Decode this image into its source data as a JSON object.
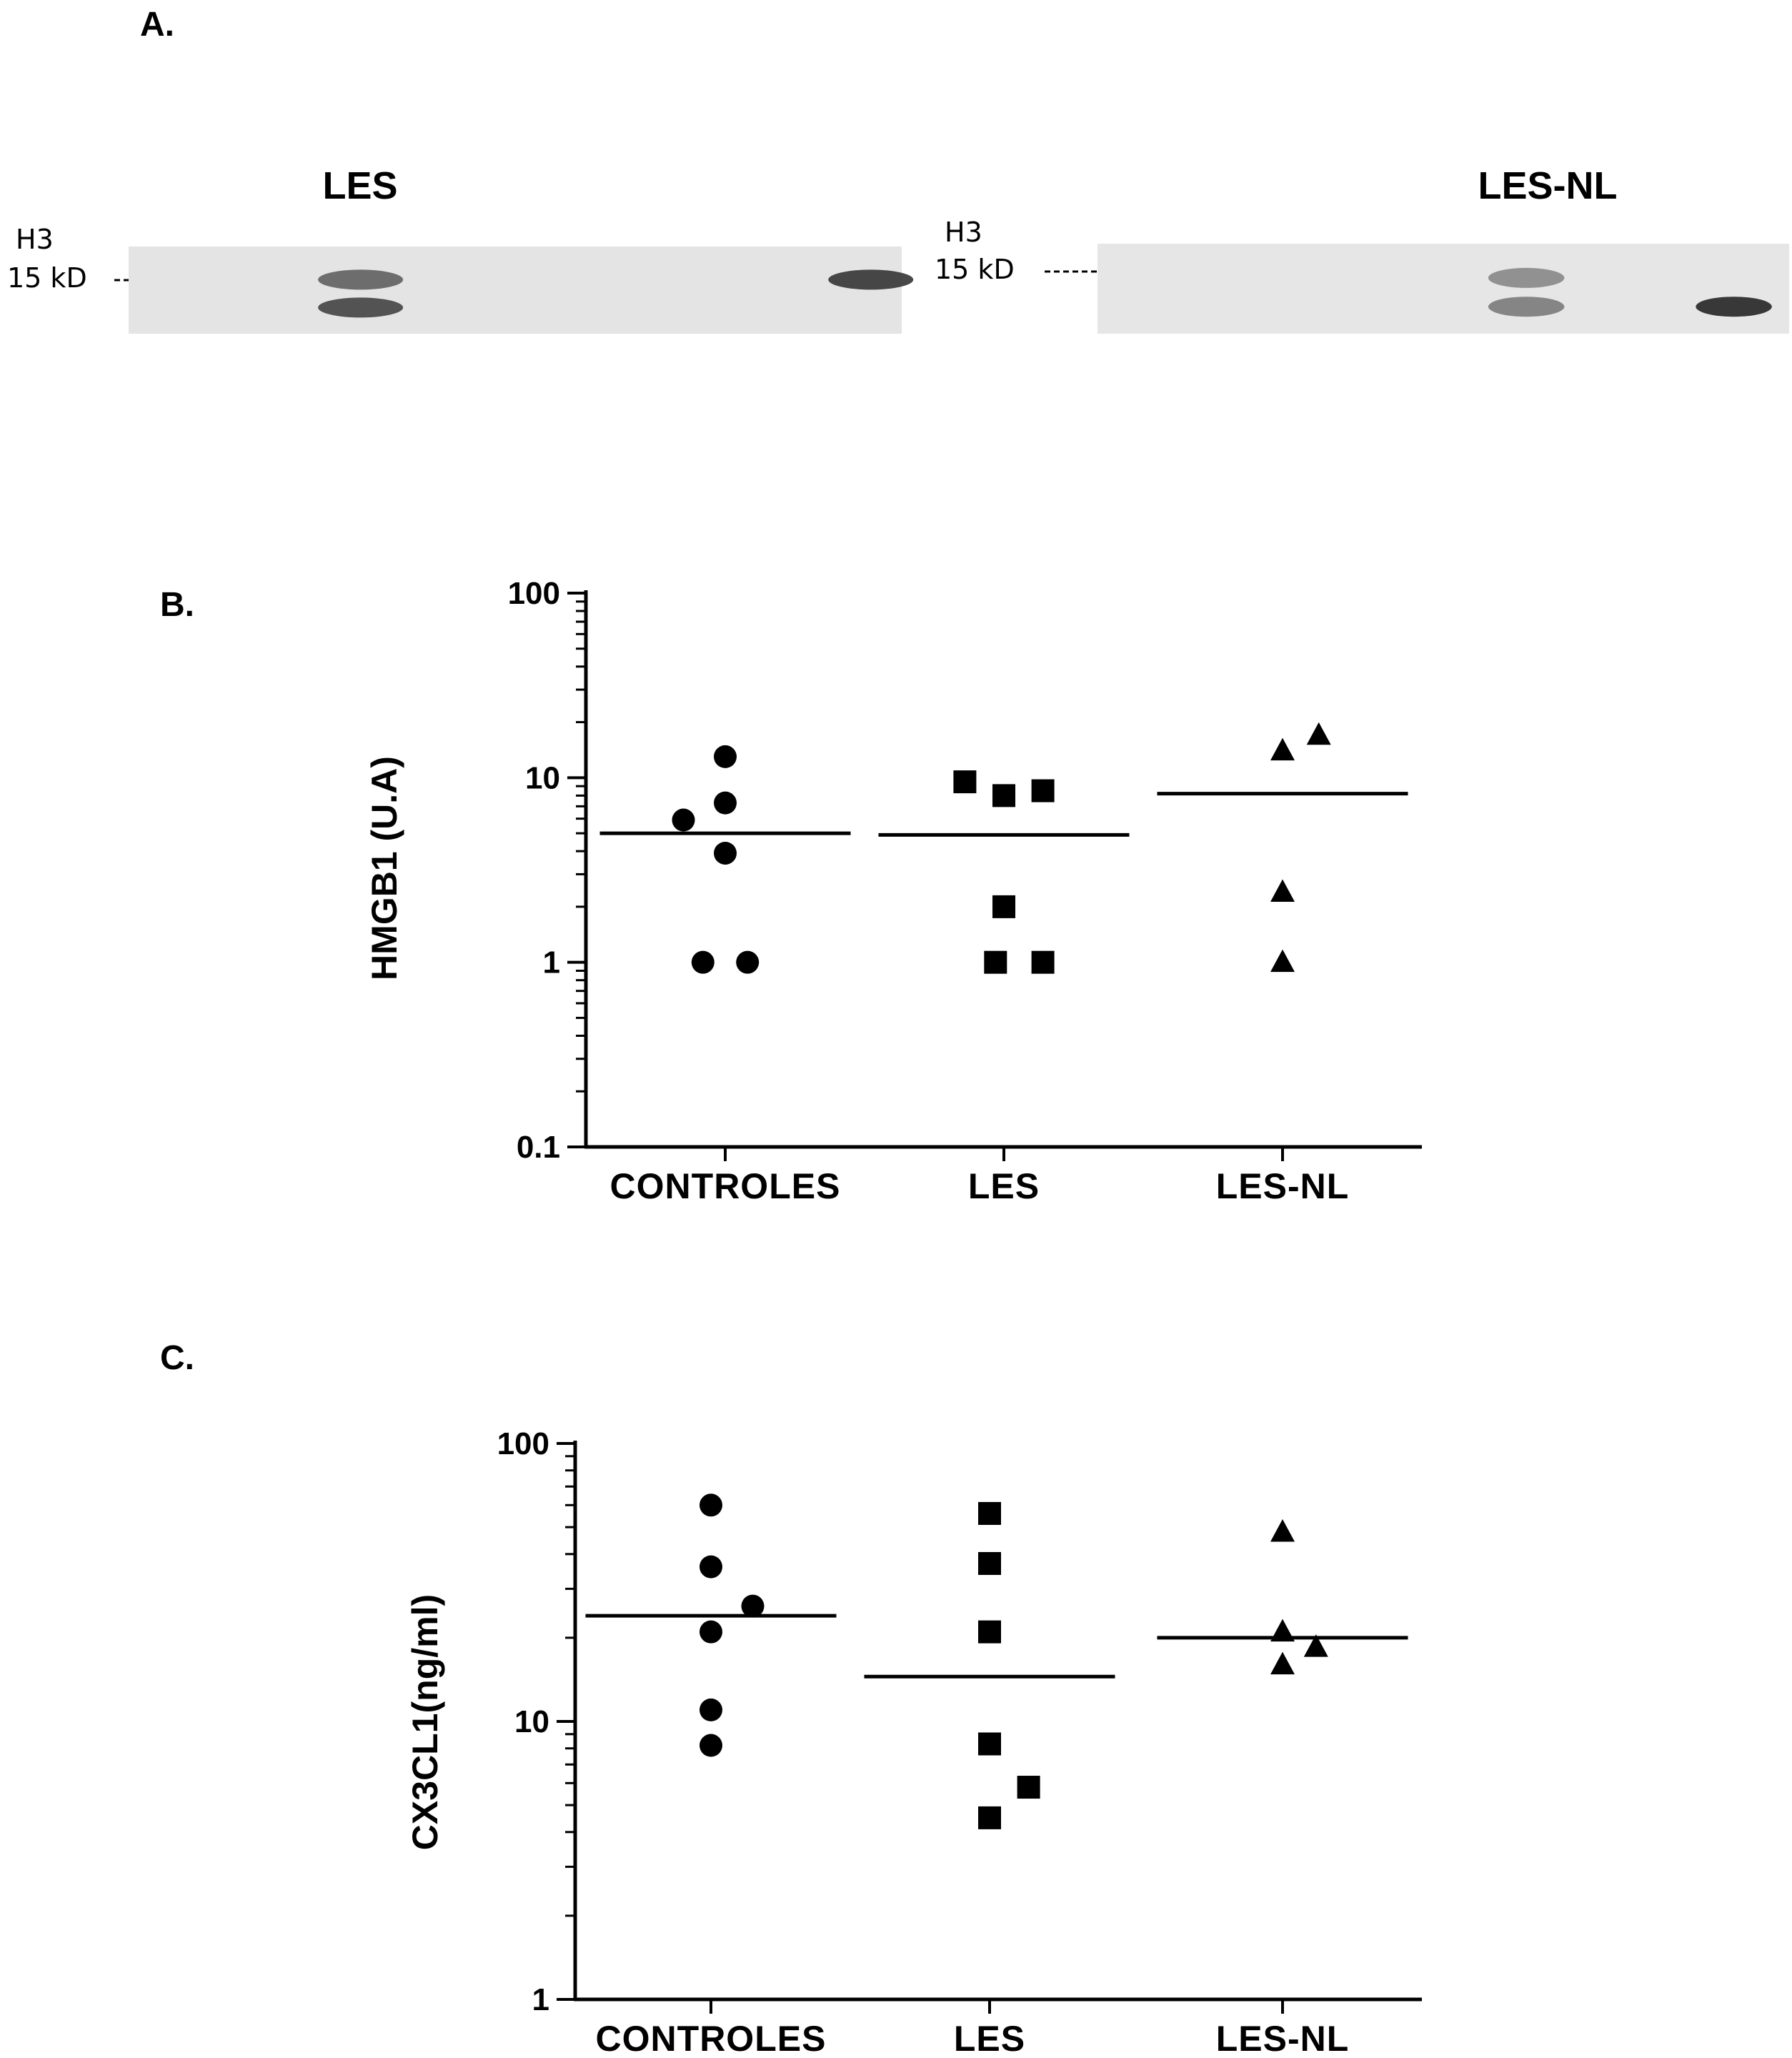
{
  "panel_a": {
    "label": "A.",
    "blots": [
      {
        "title": "LES",
        "protein": "H3",
        "marker": "15 kD",
        "background": "#e4e4e4",
        "bands": [
          {
            "lane": 0.3,
            "upper": true,
            "intensity": 0.75
          },
          {
            "lane": 0.3,
            "upper": false,
            "intensity": 0.85
          },
          {
            "lane": 0.96,
            "upper": true,
            "intensity": 0.9
          }
        ]
      },
      {
        "title": "LES-NL",
        "protein": "H3",
        "marker": "15 kD",
        "background": "#e6e6e6",
        "bands": [
          {
            "lane": 0.62,
            "upper": true,
            "intensity": 0.6
          },
          {
            "lane": 0.62,
            "upper": false,
            "intensity": 0.65
          },
          {
            "lane": 0.92,
            "upper": false,
            "intensity": 0.95
          }
        ]
      }
    ]
  },
  "chart_data": [
    {
      "panel": "B.",
      "type": "scatter",
      "ylabel": "HMGB1 (U.A)",
      "yscale": "log",
      "ylim": [
        0.1,
        100
      ],
      "yticks": [
        0.1,
        1,
        10,
        100
      ],
      "ytick_labels": [
        "0.1",
        "1",
        "10",
        "100"
      ],
      "categories": [
        "CONTROLES",
        "LES",
        "LES-NL"
      ],
      "series": [
        {
          "category": "CONTROLES",
          "marker": "circle",
          "mean": 5.0,
          "points": [
            {
              "dx": 0,
              "y": 13.0
            },
            {
              "dx": 0,
              "y": 7.3
            },
            {
              "dx": -0.15,
              "y": 5.9
            },
            {
              "dx": 0,
              "y": 3.9
            },
            {
              "dx": -0.08,
              "y": 1.0
            },
            {
              "dx": 0.08,
              "y": 1.0
            }
          ]
        },
        {
          "category": "LES",
          "marker": "square",
          "mean": 4.9,
          "points": [
            {
              "dx": -0.14,
              "y": 9.5
            },
            {
              "dx": 0,
              "y": 8.0
            },
            {
              "dx": 0.14,
              "y": 8.5
            },
            {
              "dx": 0,
              "y": 2.0
            },
            {
              "dx": -0.03,
              "y": 1.0
            },
            {
              "dx": 0.14,
              "y": 1.0
            }
          ]
        },
        {
          "category": "LES-NL",
          "marker": "triangle",
          "mean": 8.2,
          "points": [
            {
              "dx": 0,
              "y": 14.0
            },
            {
              "dx": 0.13,
              "y": 17.0
            },
            {
              "dx": 0,
              "y": 2.4
            },
            {
              "dx": 0,
              "y": 1.0
            }
          ]
        }
      ]
    },
    {
      "panel": "C.",
      "type": "scatter",
      "ylabel": "CX3CL1(ng/ml)",
      "yscale": "log",
      "ylim": [
        1,
        100
      ],
      "yticks": [
        1,
        10,
        100
      ],
      "ytick_labels": [
        "1",
        "10",
        "100"
      ],
      "categories": [
        "CONTROLES",
        "LES",
        "LES-NL"
      ],
      "series": [
        {
          "category": "CONTROLES",
          "marker": "circle",
          "mean": 24,
          "points": [
            {
              "dx": 0,
              "y": 60
            },
            {
              "dx": 0,
              "y": 36
            },
            {
              "dx": 0.15,
              "y": 26
            },
            {
              "dx": 0,
              "y": 21
            },
            {
              "dx": 0,
              "y": 11
            },
            {
              "dx": 0,
              "y": 8.2
            }
          ]
        },
        {
          "category": "LES",
          "marker": "square",
          "mean": 14.5,
          "points": [
            {
              "dx": 0,
              "y": 56
            },
            {
              "dx": 0,
              "y": 37
            },
            {
              "dx": 0,
              "y": 21
            },
            {
              "dx": 0,
              "y": 8.3
            },
            {
              "dx": 0.14,
              "y": 5.8
            },
            {
              "dx": 0,
              "y": 4.5
            }
          ]
        },
        {
          "category": "LES-NL",
          "marker": "triangle",
          "mean": 20,
          "points": [
            {
              "dx": 0,
              "y": 48
            },
            {
              "dx": 0,
              "y": 21
            },
            {
              "dx": 0.12,
              "y": 18.5
            },
            {
              "dx": 0,
              "y": 16
            }
          ]
        }
      ]
    }
  ]
}
